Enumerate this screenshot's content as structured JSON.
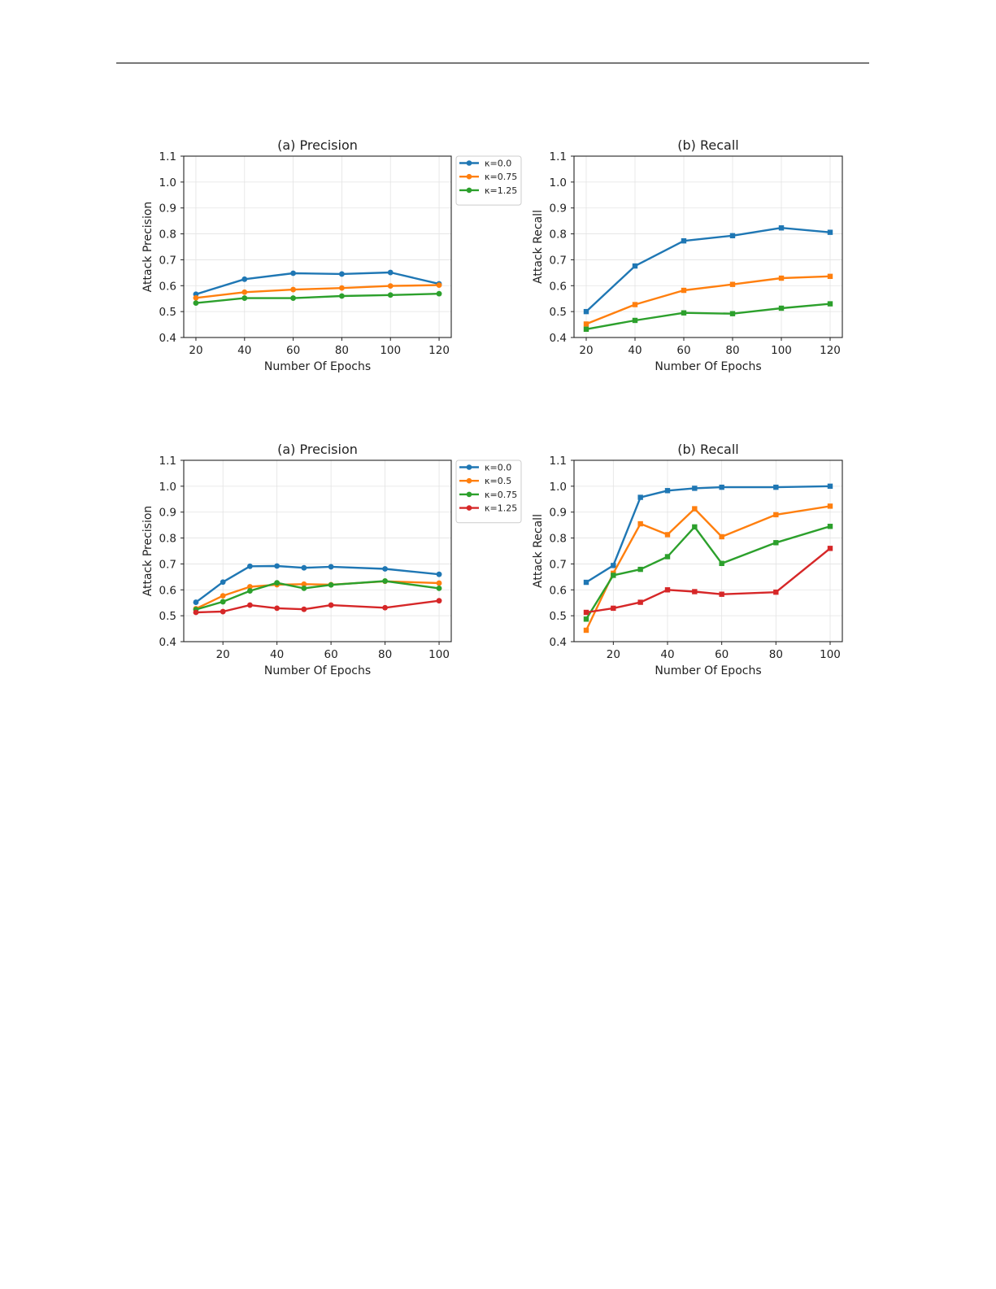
{
  "colors": {
    "blue": "#1f77b4",
    "orange": "#ff7f0e",
    "green": "#2ca02c",
    "red": "#d62728"
  },
  "chart_data": [
    {
      "type": "line",
      "title": "(a) Precision",
      "xlabel": "Number Of Epochs",
      "ylabel": "Attack Precision",
      "xlim": [
        15,
        125
      ],
      "ylim": [
        0.4,
        1.1
      ],
      "xticks": [
        20,
        40,
        60,
        80,
        100,
        120
      ],
      "yticks": [
        0.4,
        0.5,
        0.6,
        0.7,
        0.8,
        0.9,
        1.0,
        1.1
      ],
      "grid": true,
      "marker": "circle",
      "legend": "outside-upper-right",
      "x": [
        20,
        40,
        60,
        80,
        100,
        120
      ],
      "series": [
        {
          "name": "κ=0.0",
          "color": "#1f77b4",
          "values": [
            0.567,
            0.625,
            0.648,
            0.645,
            0.651,
            0.607
          ]
        },
        {
          "name": "κ=0.75",
          "color": "#ff7f0e",
          "values": [
            0.553,
            0.575,
            0.585,
            0.591,
            0.599,
            0.602
          ]
        },
        {
          "name": "κ=1.25",
          "color": "#2ca02c",
          "values": [
            0.533,
            0.552,
            0.552,
            0.56,
            0.564,
            0.569
          ]
        }
      ]
    },
    {
      "type": "line",
      "title": "(b) Recall",
      "xlabel": "Number Of Epochs",
      "ylabel": "Attack Recall",
      "xlim": [
        15,
        125
      ],
      "ylim": [
        0.4,
        1.1
      ],
      "xticks": [
        20,
        40,
        60,
        80,
        100,
        120
      ],
      "yticks": [
        0.4,
        0.5,
        0.6,
        0.7,
        0.8,
        0.9,
        1.0,
        1.1
      ],
      "grid": true,
      "marker": "square",
      "legend": "none",
      "x": [
        20,
        40,
        60,
        80,
        100,
        120
      ],
      "series": [
        {
          "name": "κ=0.0",
          "color": "#1f77b4",
          "values": [
            0.5,
            0.676,
            0.773,
            0.793,
            0.823,
            0.806
          ]
        },
        {
          "name": "κ=0.75",
          "color": "#ff7f0e",
          "values": [
            0.452,
            0.527,
            0.582,
            0.605,
            0.629,
            0.636
          ]
        },
        {
          "name": "κ=1.25",
          "color": "#2ca02c",
          "values": [
            0.432,
            0.466,
            0.495,
            0.492,
            0.513,
            0.53
          ]
        }
      ]
    },
    {
      "type": "line",
      "title": "(a) Precision",
      "xlabel": "Number Of Epochs",
      "ylabel": "Attack Precision",
      "xlim": [
        5.5,
        104.5
      ],
      "ylim": [
        0.4,
        1.1
      ],
      "xticks": [
        20,
        40,
        60,
        80,
        100
      ],
      "yticks": [
        0.4,
        0.5,
        0.6,
        0.7,
        0.8,
        0.9,
        1.0,
        1.1
      ],
      "grid": true,
      "marker": "circle",
      "legend": "outside-upper-right",
      "x": [
        10,
        20,
        30,
        40,
        50,
        60,
        80,
        100
      ],
      "series": [
        {
          "name": "κ=0.0",
          "color": "#1f77b4",
          "values": [
            0.552,
            0.63,
            0.691,
            0.692,
            0.685,
            0.689,
            0.681,
            0.66
          ]
        },
        {
          "name": "κ=0.5",
          "color": "#ff7f0e",
          "values": [
            0.527,
            0.577,
            0.612,
            0.62,
            0.622,
            0.62,
            0.633,
            0.626
          ]
        },
        {
          "name": "κ=0.75",
          "color": "#2ca02c",
          "values": [
            0.524,
            0.554,
            0.596,
            0.627,
            0.606,
            0.619,
            0.634,
            0.606
          ]
        },
        {
          "name": "κ=1.25",
          "color": "#d62728",
          "values": [
            0.513,
            0.516,
            0.541,
            0.529,
            0.525,
            0.541,
            0.531,
            0.558
          ]
        }
      ]
    },
    {
      "type": "line",
      "title": "(b) Recall",
      "xlabel": "Number Of Epochs",
      "ylabel": "Attack Recall",
      "xlim": [
        5.5,
        104.5
      ],
      "ylim": [
        0.4,
        1.1
      ],
      "xticks": [
        20,
        40,
        60,
        80,
        100
      ],
      "yticks": [
        0.4,
        0.5,
        0.6,
        0.7,
        0.8,
        0.9,
        1.0,
        1.1
      ],
      "grid": true,
      "marker": "square",
      "legend": "none",
      "x": [
        10,
        20,
        30,
        40,
        50,
        60,
        80,
        100
      ],
      "series": [
        {
          "name": "κ=0.0",
          "color": "#1f77b4",
          "values": [
            0.629,
            0.694,
            0.957,
            0.983,
            0.992,
            0.996,
            0.996,
            1.0
          ]
        },
        {
          "name": "κ=0.5",
          "color": "#ff7f0e",
          "values": [
            0.444,
            0.664,
            0.855,
            0.813,
            0.913,
            0.805,
            0.89,
            0.923
          ]
        },
        {
          "name": "κ=0.75",
          "color": "#2ca02c",
          "values": [
            0.487,
            0.656,
            0.679,
            0.728,
            0.843,
            0.702,
            0.782,
            0.845
          ]
        },
        {
          "name": "κ=1.25",
          "color": "#d62728",
          "values": [
            0.513,
            0.529,
            0.552,
            0.6,
            0.593,
            0.583,
            0.591,
            0.76
          ]
        }
      ]
    }
  ]
}
